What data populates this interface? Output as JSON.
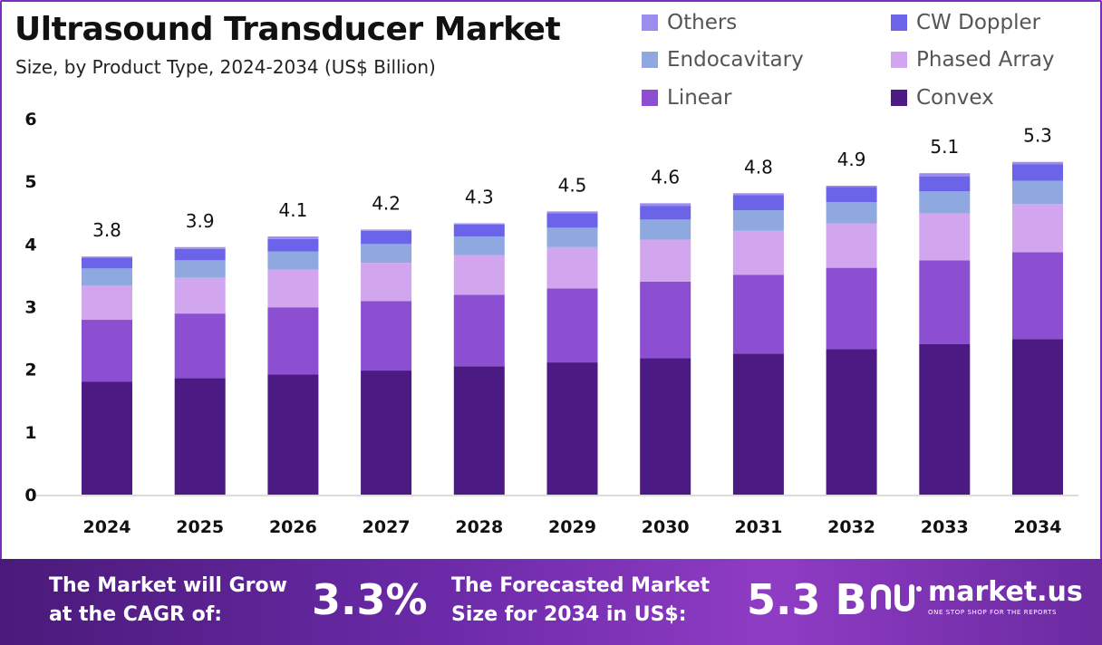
{
  "header": {
    "title": "Ultrasound Transducer Market",
    "subtitle": "Size, by Product Type, 2024-2034 (US$ Billion)"
  },
  "legend": [
    {
      "label": "Others",
      "color": "#9b8cf0"
    },
    {
      "label": "CW Doppler",
      "color": "#6b63e8"
    },
    {
      "label": "Endocavitary",
      "color": "#8fa8e0"
    },
    {
      "label": "Phased Array",
      "color": "#d2a6ef"
    },
    {
      "label": "Linear",
      "color": "#8c4fd1"
    },
    {
      "label": "Convex",
      "color": "#4b1a82"
    }
  ],
  "chart_data": {
    "type": "bar",
    "stacked": true,
    "title": "Ultrasound Transducer Market",
    "subtitle": "Size, by Product Type, 2024-2034 (US$ Billion)",
    "categories": [
      "2024",
      "2025",
      "2026",
      "2027",
      "2028",
      "2029",
      "2030",
      "2031",
      "2032",
      "2033",
      "2034"
    ],
    "totals": [
      "3.8",
      "3.9",
      "4.1",
      "4.2",
      "4.3",
      "4.5",
      "4.6",
      "4.8",
      "4.9",
      "5.1",
      "5.3"
    ],
    "ylim": [
      0,
      6
    ],
    "yticks": [
      "0",
      "1",
      "2",
      "3",
      "4",
      "5",
      "6"
    ],
    "grid": false,
    "legend_position": "top-right",
    "series": [
      {
        "name": "Convex",
        "color": "#4b1a82",
        "values": [
          1.8,
          1.86,
          1.92,
          1.98,
          2.05,
          2.11,
          2.18,
          2.25,
          2.32,
          2.4,
          2.48
        ]
      },
      {
        "name": "Linear",
        "color": "#8c4fd1",
        "values": [
          0.99,
          1.03,
          1.07,
          1.11,
          1.14,
          1.18,
          1.22,
          1.26,
          1.3,
          1.34,
          1.39
        ]
      },
      {
        "name": "Phased Array",
        "color": "#d2a6ef",
        "values": [
          0.55,
          0.57,
          0.6,
          0.61,
          0.63,
          0.66,
          0.67,
          0.7,
          0.71,
          0.75,
          0.77
        ]
      },
      {
        "name": "Endocavitary",
        "color": "#8fa8e0",
        "values": [
          0.27,
          0.28,
          0.29,
          0.3,
          0.3,
          0.31,
          0.32,
          0.33,
          0.34,
          0.35,
          0.37
        ]
      },
      {
        "name": "CW Doppler",
        "color": "#6b63e8",
        "values": [
          0.17,
          0.18,
          0.2,
          0.21,
          0.19,
          0.23,
          0.22,
          0.24,
          0.24,
          0.24,
          0.26
        ]
      },
      {
        "name": "Others",
        "color": "#9b8cf0",
        "values": [
          0.02,
          0.03,
          0.04,
          0.02,
          0.02,
          0.03,
          0.04,
          0.03,
          0.02,
          0.05,
          0.04
        ]
      }
    ]
  },
  "footer": {
    "cagr_text_line1": "The Market will Grow",
    "cagr_text_line2": "at the CAGR of:",
    "cagr_value": "3.3%",
    "forecast_text_line1": "The Forecasted Market",
    "forecast_text_line2": "Size for 2034 in US$:",
    "forecast_value": "5.3 B",
    "brand_name": "market.us",
    "brand_tagline": "ONE STOP SHOP FOR THE REPORTS"
  }
}
